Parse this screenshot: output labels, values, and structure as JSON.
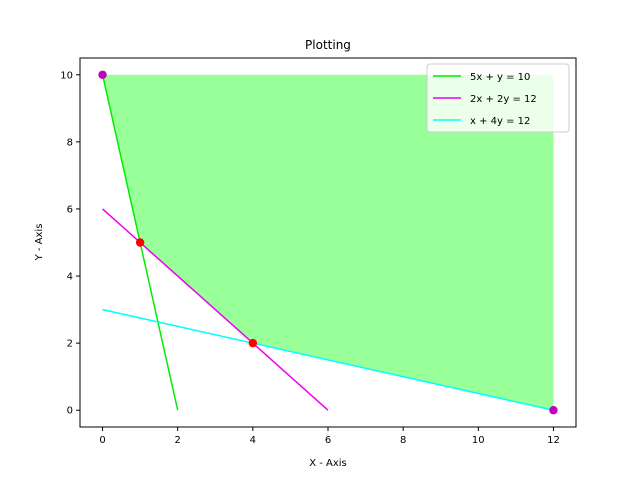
{
  "chart_data": {
    "type": "line",
    "title": "Plotting",
    "xlabel": "X - Axis",
    "ylabel": "Y - Axis",
    "xlim": [
      -0.6,
      12.6
    ],
    "ylim": [
      -0.5,
      10.5
    ],
    "xticks": [
      0,
      2,
      4,
      6,
      8,
      10,
      12
    ],
    "yticks": [
      0,
      2,
      4,
      6,
      8,
      10
    ],
    "grid": false,
    "legend_position": "top-right",
    "feasible_region": {
      "color": "#99ff99",
      "vertices": [
        [
          0,
          10
        ],
        [
          12,
          10
        ],
        [
          12,
          0
        ],
        [
          4,
          2
        ],
        [
          1,
          5
        ]
      ]
    },
    "series": [
      {
        "name": "5x + y = 10",
        "color": "#00ee00",
        "x": [
          0,
          2
        ],
        "y": [
          10,
          0
        ]
      },
      {
        "name": "2x + 2y = 12",
        "color": "#ee00ee",
        "x": [
          0,
          6
        ],
        "y": [
          6,
          0
        ]
      },
      {
        "name": "x + 4y = 12",
        "color": "#00ffff",
        "x": [
          0,
          12
        ],
        "y": [
          3,
          0
        ]
      }
    ],
    "points": [
      {
        "x": 0,
        "y": 10,
        "color": "#bf00bf"
      },
      {
        "x": 12,
        "y": 0,
        "color": "#bf00bf"
      },
      {
        "x": 1,
        "y": 5,
        "color": "#ff0000"
      },
      {
        "x": 4,
        "y": 2,
        "color": "#ff0000"
      }
    ]
  }
}
